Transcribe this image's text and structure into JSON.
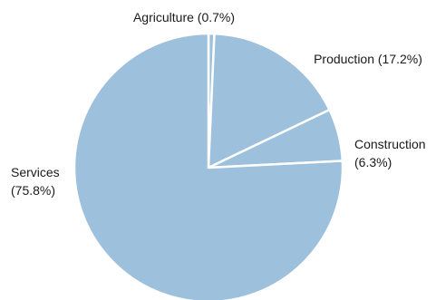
{
  "chart_data": {
    "type": "pie",
    "title": "",
    "start": "12 o'clock",
    "direction": "clockwise",
    "slice_color": "#9dc0dc",
    "separator_color": "#ffffff",
    "slices": [
      {
        "name": "Agriculture",
        "value": 0.7,
        "label_lines": [
          "Agriculture (0.7%)"
        ]
      },
      {
        "name": "Production",
        "value": 17.2,
        "label_lines": [
          "Production (17.2%)"
        ]
      },
      {
        "name": "Construction",
        "value": 6.3,
        "label_lines": [
          "Construction",
          "(6.3%)"
        ]
      },
      {
        "name": "Services",
        "value": 75.8,
        "label_lines": [
          "Services",
          "(75.8%)"
        ]
      }
    ]
  }
}
